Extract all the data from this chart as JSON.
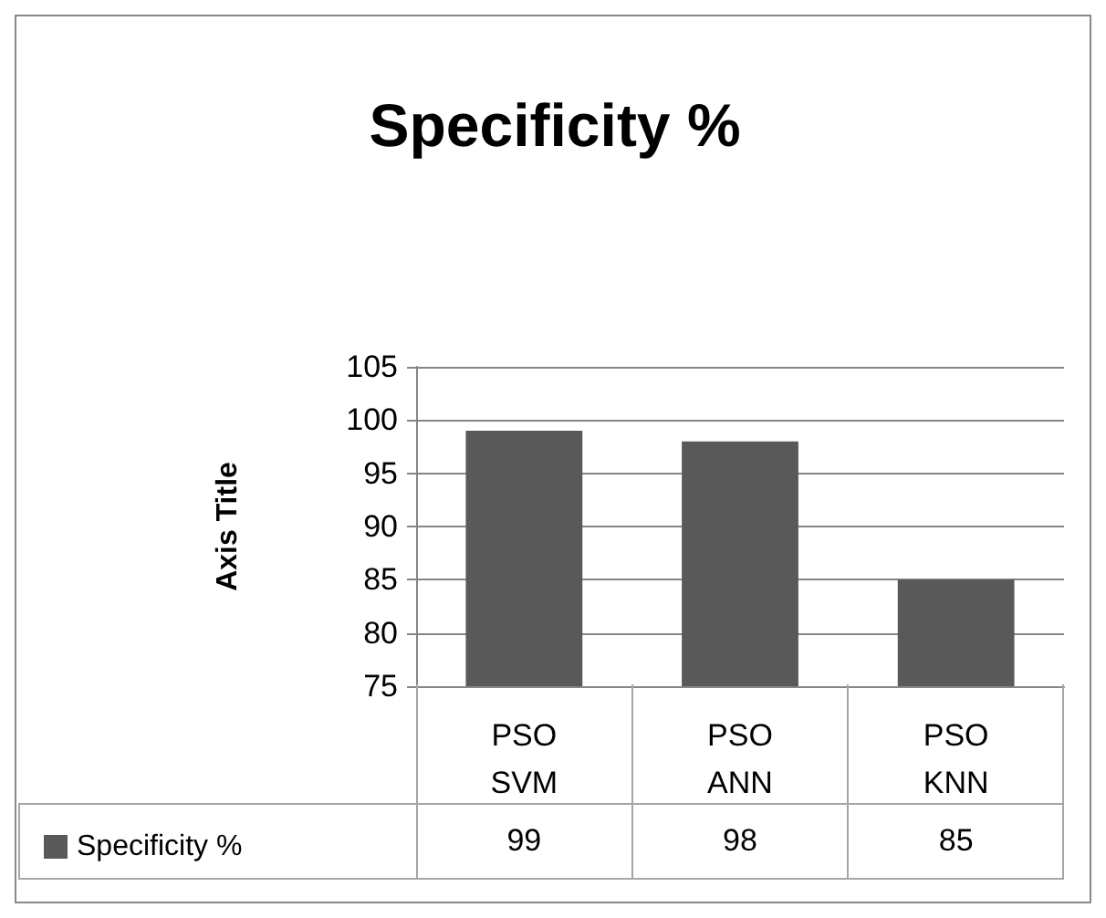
{
  "chart_data": {
    "type": "bar",
    "title": "Specificity %",
    "ylabel": "Axis Title",
    "categories": [
      "PSO SVM",
      "PSO ANN",
      "PSO KNN"
    ],
    "series": [
      {
        "name": "Specificity %",
        "color": "#595959",
        "values": [
          99,
          98,
          85
        ]
      }
    ],
    "ylim": [
      75,
      105
    ],
    "yticks": [
      75,
      80,
      85,
      90,
      95,
      100,
      105
    ],
    "grid": "y",
    "legend": "bottom left",
    "data_labels": true
  }
}
